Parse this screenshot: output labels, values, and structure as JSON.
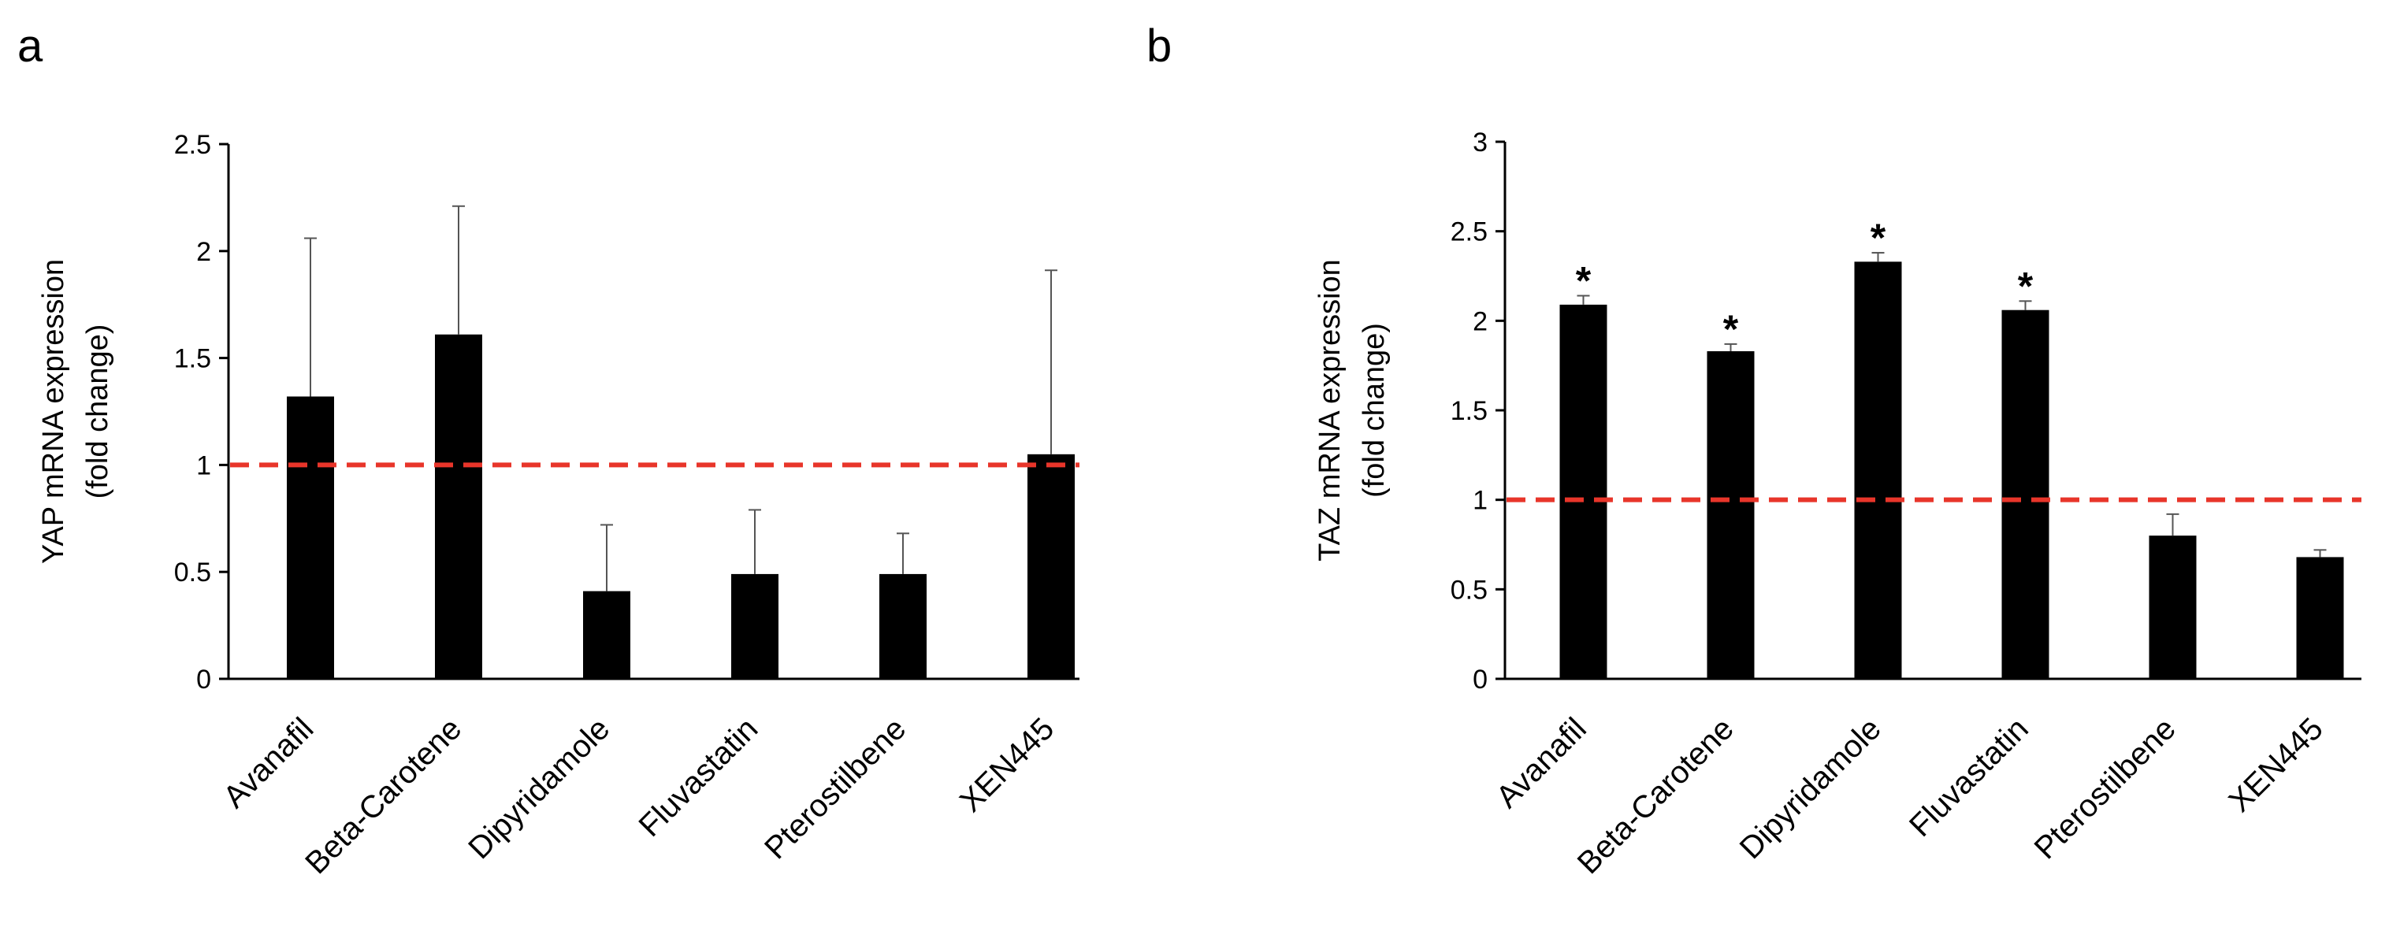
{
  "chart_data": [
    {
      "panel_label": "a",
      "type": "bar",
      "ylabel_lines": [
        "YAP mRNA expression",
        "(fold change)"
      ],
      "categories": [
        "Avanafil",
        "Beta-Carotene",
        "Dipyridamole",
        "Fluvastatin",
        "Pterostilbene",
        "XEN445"
      ],
      "values": [
        1.32,
        1.61,
        0.41,
        0.49,
        0.49,
        1.05
      ],
      "errors": [
        0.74,
        0.6,
        0.31,
        0.3,
        0.19,
        0.86
      ],
      "significant": [
        false,
        false,
        false,
        false,
        false,
        false
      ],
      "significance_marker": "*",
      "ylim": [
        0,
        2.5
      ],
      "yticks": [
        0,
        0.5,
        1,
        1.5,
        2,
        2.5
      ],
      "ytick_labels": [
        "0",
        "0.5",
        "1",
        "1.5",
        "2",
        "2.5"
      ],
      "reference_line": 1,
      "bar_color": "#000000",
      "reference_color": "#e8352a"
    },
    {
      "panel_label": "b",
      "type": "bar",
      "ylabel_lines": [
        "TAZ mRNA expression",
        "(fold change)"
      ],
      "categories": [
        "Avanafil",
        "Beta-Carotene",
        "Dipyridamole",
        "Fluvastatin",
        "Pterostilbene",
        "XEN445"
      ],
      "values": [
        2.09,
        1.83,
        2.33,
        2.06,
        0.8,
        0.68
      ],
      "errors": [
        0.05,
        0.04,
        0.05,
        0.05,
        0.12,
        0.04
      ],
      "significant": [
        true,
        true,
        true,
        true,
        false,
        false
      ],
      "significance_marker": "*",
      "ylim": [
        0,
        3
      ],
      "yticks": [
        0,
        0.5,
        1,
        1.5,
        2,
        2.5,
        3
      ],
      "ytick_labels": [
        "0",
        "0.5",
        "1",
        "1.5",
        "2",
        "2.5",
        "3"
      ],
      "reference_line": 1,
      "bar_color": "#000000",
      "reference_color": "#e8352a"
    }
  ]
}
